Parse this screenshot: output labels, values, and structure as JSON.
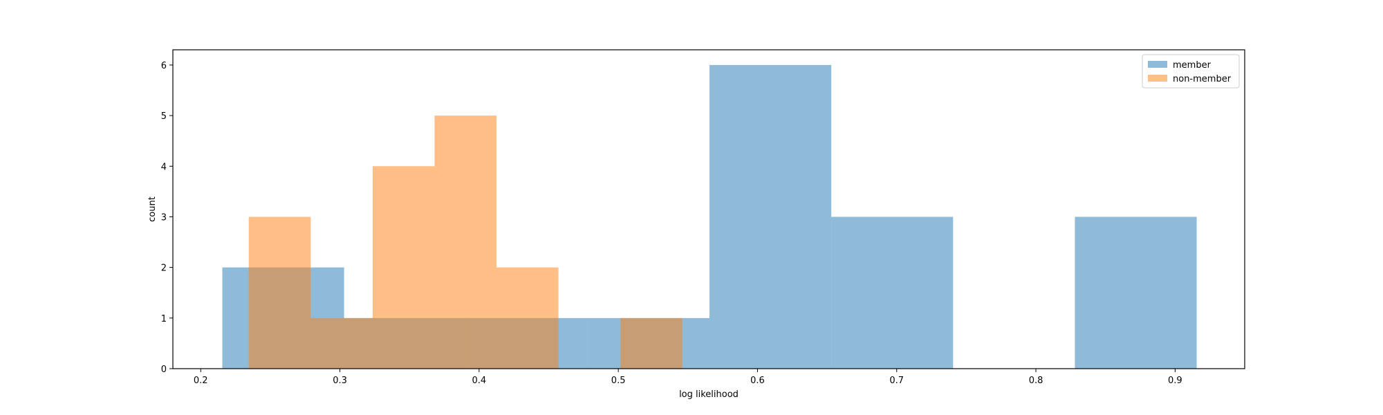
{
  "chart_data": {
    "type": "bar",
    "subtype": "overlapping-histogram",
    "xlabel": "log likelihood",
    "ylabel": "count",
    "xlim": [
      0.18,
      0.95
    ],
    "ylim": [
      0,
      6.3
    ],
    "xticks": [
      0.2,
      0.3,
      0.4,
      0.5,
      0.6,
      0.7,
      0.8,
      0.9
    ],
    "xtick_labels": [
      "0.2",
      "0.3",
      "0.4",
      "0.5",
      "0.6",
      "0.7",
      "0.8",
      "0.9"
    ],
    "yticks": [
      0,
      1,
      2,
      3,
      4,
      5,
      6
    ],
    "ytick_labels": [
      "0",
      "1",
      "2",
      "3",
      "4",
      "5",
      "6"
    ],
    "grid": false,
    "legend_position": "top-right",
    "series": [
      {
        "name": "member",
        "color": "#1f77b4",
        "opacity": 0.5,
        "bins": [
          {
            "x0": 0.2155,
            "x1": 0.303,
            "count": 2
          },
          {
            "x0": 0.303,
            "x1": 0.3905,
            "count": 1
          },
          {
            "x0": 0.3905,
            "x1": 0.478,
            "count": 1
          },
          {
            "x0": 0.478,
            "x1": 0.5655,
            "count": 1
          },
          {
            "x0": 0.5655,
            "x1": 0.653,
            "count": 6
          },
          {
            "x0": 0.653,
            "x1": 0.7405,
            "count": 3
          },
          {
            "x0": 0.7405,
            "x1": 0.828,
            "count": 0
          },
          {
            "x0": 0.828,
            "x1": 0.9155,
            "count": 3
          }
        ]
      },
      {
        "name": "non-member",
        "color": "#ff7f0e",
        "opacity": 0.5,
        "bins": [
          {
            "x0": 0.2345,
            "x1": 0.279,
            "count": 3
          },
          {
            "x0": 0.279,
            "x1": 0.3235,
            "count": 1
          },
          {
            "x0": 0.3235,
            "x1": 0.368,
            "count": 4
          },
          {
            "x0": 0.368,
            "x1": 0.4125,
            "count": 5
          },
          {
            "x0": 0.4125,
            "x1": 0.457,
            "count": 2
          },
          {
            "x0": 0.457,
            "x1": 0.5015,
            "count": 0
          },
          {
            "x0": 0.5015,
            "x1": 0.546,
            "count": 1
          }
        ]
      }
    ]
  }
}
